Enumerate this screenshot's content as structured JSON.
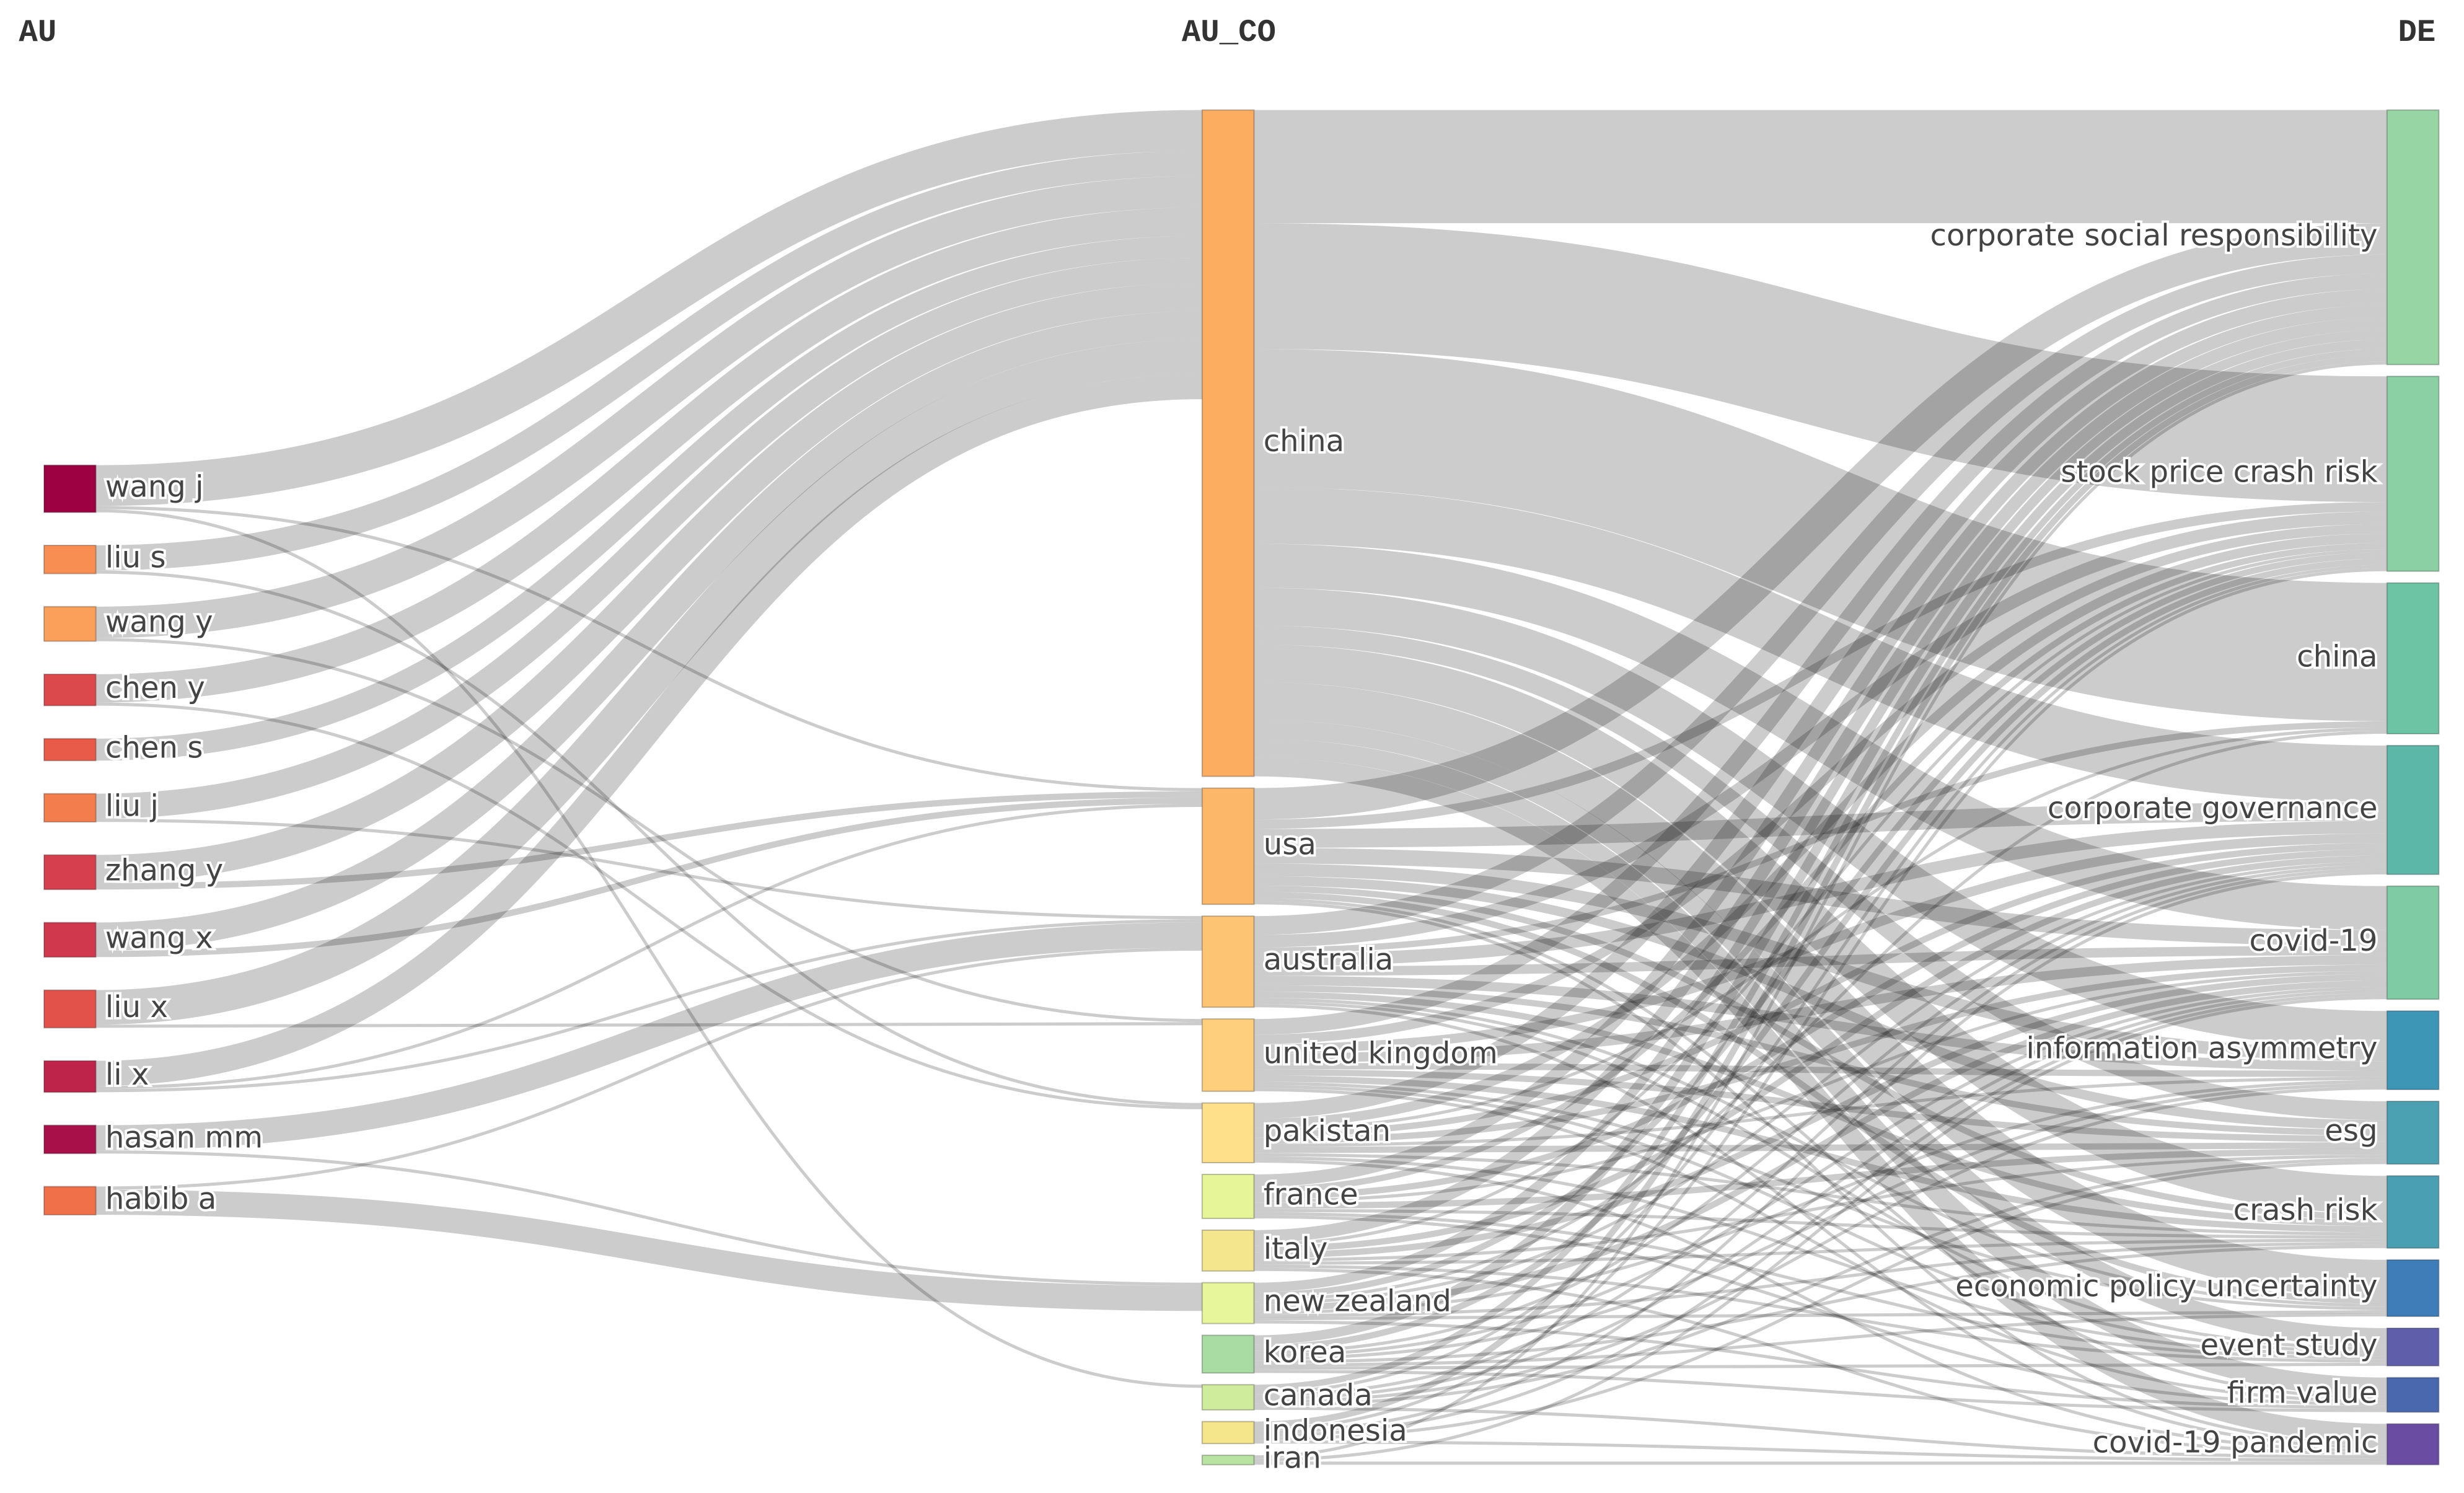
{
  "chart_data": {
    "type": "sankey",
    "columns": [
      {
        "title": "AU",
        "nodes": [
          {
            "name": "wang j",
            "color": "#9e0142"
          },
          {
            "name": "liu s",
            "color": "#f98e52"
          },
          {
            "name": "wang y",
            "color": "#fba05b"
          },
          {
            "name": "chen y",
            "color": "#dc494c"
          },
          {
            "name": "chen s",
            "color": "#e85b48"
          },
          {
            "name": "liu j",
            "color": "#f47d4d"
          },
          {
            "name": "zhang y",
            "color": "#d6404e"
          },
          {
            "name": "wang x",
            "color": "#cf384d"
          },
          {
            "name": "liu x",
            "color": "#e2514a"
          },
          {
            "name": "li x",
            "color": "#be2449"
          },
          {
            "name": "hasan mm",
            "color": "#a8104a"
          },
          {
            "name": "habib a",
            "color": "#f0704a"
          }
        ]
      },
      {
        "title": "AU_CO",
        "nodes": [
          {
            "name": "china",
            "color": "#fdad60"
          },
          {
            "name": "usa",
            "color": "#fdb768"
          },
          {
            "name": "australia",
            "color": "#fdc474"
          },
          {
            "name": "united kingdom",
            "color": "#fed07e"
          },
          {
            "name": "pakistan",
            "color": "#fee08b"
          },
          {
            "name": "france",
            "color": "#e6f598"
          },
          {
            "name": "italy",
            "color": "#f4e68d"
          },
          {
            "name": "new zealand",
            "color": "#e8f69b"
          },
          {
            "name": "korea",
            "color": "#a9dca3"
          },
          {
            "name": "canada",
            "color": "#cfec9d"
          },
          {
            "name": "indonesia",
            "color": "#f5e58b"
          },
          {
            "name": "iran",
            "color": "#b9e3a0"
          }
        ]
      },
      {
        "title": "DE",
        "nodes": [
          {
            "name": "corporate social responsibility",
            "color": "#98d5a4"
          },
          {
            "name": "stock price crash risk",
            "color": "#8ad0a4"
          },
          {
            "name": "china",
            "color": "#6cc4a4"
          },
          {
            "name": "corporate governance",
            "color": "#5cb7a9"
          },
          {
            "name": "covid-19",
            "color": "#7ecba4"
          },
          {
            "name": "information asymmetry",
            "color": "#3e96b6"
          },
          {
            "name": "esg",
            "color": "#4ba0b1"
          },
          {
            "name": "crash risk",
            "color": "#4b9fb2"
          },
          {
            "name": "economic policy uncertainty",
            "color": "#3e7db8"
          },
          {
            "name": "event study",
            "color": "#5f5eab"
          },
          {
            "name": "firm value",
            "color": "#4a68ae"
          },
          {
            "name": "covid-19 pandemic",
            "color": "#6a4da3"
          }
        ]
      }
    ],
    "links": [
      [
        [
          0,
          0,
          13
        ],
        [
          0,
          1,
          1
        ],
        [
          0,
          9,
          1
        ],
        [
          1,
          0,
          8
        ],
        [
          1,
          4,
          1
        ],
        [
          2,
          0,
          10
        ],
        [
          2,
          3,
          1
        ],
        [
          3,
          0,
          9
        ],
        [
          3,
          4,
          1
        ],
        [
          4,
          0,
          7
        ],
        [
          5,
          0,
          8
        ],
        [
          5,
          2,
          1
        ],
        [
          6,
          0,
          9
        ],
        [
          6,
          1,
          2
        ],
        [
          7,
          0,
          9
        ],
        [
          7,
          1,
          2
        ],
        [
          8,
          0,
          11
        ],
        [
          8,
          3,
          1
        ],
        [
          9,
          0,
          8
        ],
        [
          9,
          1,
          1
        ],
        [
          9,
          2,
          1
        ],
        [
          10,
          2,
          8
        ],
        [
          10,
          7,
          1
        ],
        [
          11,
          7,
          8
        ],
        [
          11,
          2,
          1
        ]
      ],
      [
        [
          0,
          0,
          36
        ],
        [
          0,
          1,
          40
        ],
        [
          0,
          2,
          44
        ],
        [
          0,
          3,
          18
        ],
        [
          0,
          4,
          14
        ],
        [
          0,
          5,
          12
        ],
        [
          0,
          6,
          6
        ],
        [
          0,
          7,
          12
        ],
        [
          0,
          8,
          12
        ],
        [
          0,
          9,
          6
        ],
        [
          0,
          10,
          6
        ],
        [
          0,
          11,
          6
        ],
        [
          1,
          0,
          10
        ],
        [
          1,
          1,
          3
        ],
        [
          1,
          3,
          6
        ],
        [
          1,
          4,
          5
        ],
        [
          1,
          5,
          4
        ],
        [
          1,
          6,
          3
        ],
        [
          1,
          7,
          2
        ],
        [
          1,
          8,
          2
        ],
        [
          1,
          10,
          1
        ],
        [
          1,
          11,
          1
        ],
        [
          2,
          0,
          6
        ],
        [
          2,
          1,
          4
        ],
        [
          2,
          2,
          2
        ],
        [
          2,
          3,
          4
        ],
        [
          2,
          4,
          3
        ],
        [
          2,
          5,
          3
        ],
        [
          2,
          6,
          2
        ],
        [
          2,
          7,
          2
        ],
        [
          2,
          8,
          1
        ],
        [
          2,
          9,
          1
        ],
        [
          2,
          11,
          1
        ],
        [
          3,
          0,
          5
        ],
        [
          3,
          1,
          3
        ],
        [
          3,
          3,
          3
        ],
        [
          3,
          4,
          3
        ],
        [
          3,
          5,
          2
        ],
        [
          3,
          6,
          2
        ],
        [
          3,
          7,
          2
        ],
        [
          3,
          8,
          1
        ],
        [
          3,
          9,
          1
        ],
        [
          3,
          10,
          1
        ],
        [
          4,
          0,
          5
        ],
        [
          4,
          1,
          3
        ],
        [
          4,
          2,
          1
        ],
        [
          4,
          3,
          2
        ],
        [
          4,
          4,
          2
        ],
        [
          4,
          5,
          1
        ],
        [
          4,
          6,
          2
        ],
        [
          4,
          7,
          1
        ],
        [
          4,
          9,
          1
        ],
        [
          4,
          11,
          1
        ],
        [
          5,
          0,
          4
        ],
        [
          5,
          1,
          2
        ],
        [
          5,
          3,
          2
        ],
        [
          5,
          4,
          1
        ],
        [
          5,
          6,
          2
        ],
        [
          5,
          7,
          1
        ],
        [
          5,
          9,
          1
        ],
        [
          5,
          10,
          1
        ],
        [
          6,
          0,
          4
        ],
        [
          6,
          1,
          1
        ],
        [
          6,
          3,
          2
        ],
        [
          6,
          4,
          2
        ],
        [
          6,
          6,
          1
        ],
        [
          6,
          7,
          1
        ],
        [
          6,
          9,
          1
        ],
        [
          6,
          11,
          1
        ],
        [
          7,
          0,
          3
        ],
        [
          7,
          1,
          2
        ],
        [
          7,
          2,
          1
        ],
        [
          7,
          3,
          1
        ],
        [
          7,
          4,
          2
        ],
        [
          7,
          5,
          1
        ],
        [
          7,
          7,
          1
        ],
        [
          7,
          8,
          1
        ],
        [
          7,
          10,
          1
        ],
        [
          8,
          0,
          3
        ],
        [
          8,
          1,
          2
        ],
        [
          8,
          3,
          1
        ],
        [
          8,
          4,
          1
        ],
        [
          8,
          5,
          1
        ],
        [
          8,
          7,
          1
        ],
        [
          8,
          8,
          1
        ],
        [
          8,
          9,
          1
        ],
        [
          8,
          10,
          1
        ],
        [
          9,
          0,
          2
        ],
        [
          9,
          1,
          1
        ],
        [
          9,
          3,
          1
        ],
        [
          9,
          4,
          1
        ],
        [
          9,
          5,
          1
        ],
        [
          9,
          6,
          1
        ],
        [
          9,
          11,
          1
        ],
        [
          10,
          0,
          2
        ],
        [
          10,
          1,
          1
        ],
        [
          10,
          3,
          1
        ],
        [
          10,
          4,
          1
        ],
        [
          10,
          6,
          1
        ],
        [
          10,
          11,
          1
        ],
        [
          11,
          0,
          1
        ],
        [
          11,
          4,
          1
        ],
        [
          11,
          11,
          1
        ]
      ]
    ]
  }
}
